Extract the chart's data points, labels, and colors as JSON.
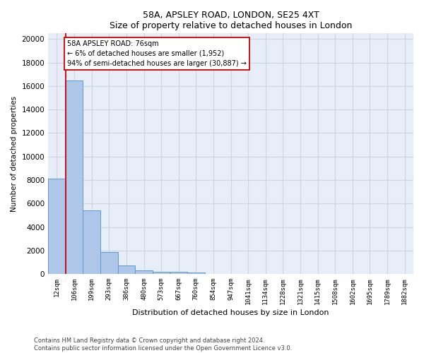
{
  "title": "58A, APSLEY ROAD, LONDON, SE25 4XT",
  "subtitle": "Size of property relative to detached houses in London",
  "xlabel": "Distribution of detached houses by size in London",
  "ylabel": "Number of detached properties",
  "categories": [
    "12sqm",
    "106sqm",
    "199sqm",
    "293sqm",
    "386sqm",
    "480sqm",
    "573sqm",
    "667sqm",
    "760sqm",
    "854sqm",
    "947sqm",
    "1041sqm",
    "1134sqm",
    "1228sqm",
    "1321sqm",
    "1415sqm",
    "1508sqm",
    "1602sqm",
    "1695sqm",
    "1789sqm",
    "1882sqm"
  ],
  "values": [
    8100,
    16500,
    5400,
    1850,
    700,
    330,
    200,
    170,
    130,
    0,
    0,
    0,
    0,
    0,
    0,
    0,
    0,
    0,
    0,
    0,
    0
  ],
  "bar_color": "#aec6e8",
  "bar_edge_color": "#5b9bd5",
  "annotation_title": "58A APSLEY ROAD: 76sqm",
  "annotation_line1": "← 6% of detached houses are smaller (1,952)",
  "annotation_line2": "94% of semi-detached houses are larger (30,887) →",
  "annotation_box_edge": "#cc0000",
  "property_line_color": "#cc0000",
  "ylim_max": 20500,
  "yticks": [
    0,
    2000,
    4000,
    6000,
    8000,
    10000,
    12000,
    14000,
    16000,
    18000,
    20000
  ],
  "grid_color": "#cdd5e3",
  "background_color": "#e8eef8",
  "footnote1": "Contains HM Land Registry data © Crown copyright and database right 2024.",
  "footnote2": "Contains public sector information licensed under the Open Government Licence v3.0."
}
